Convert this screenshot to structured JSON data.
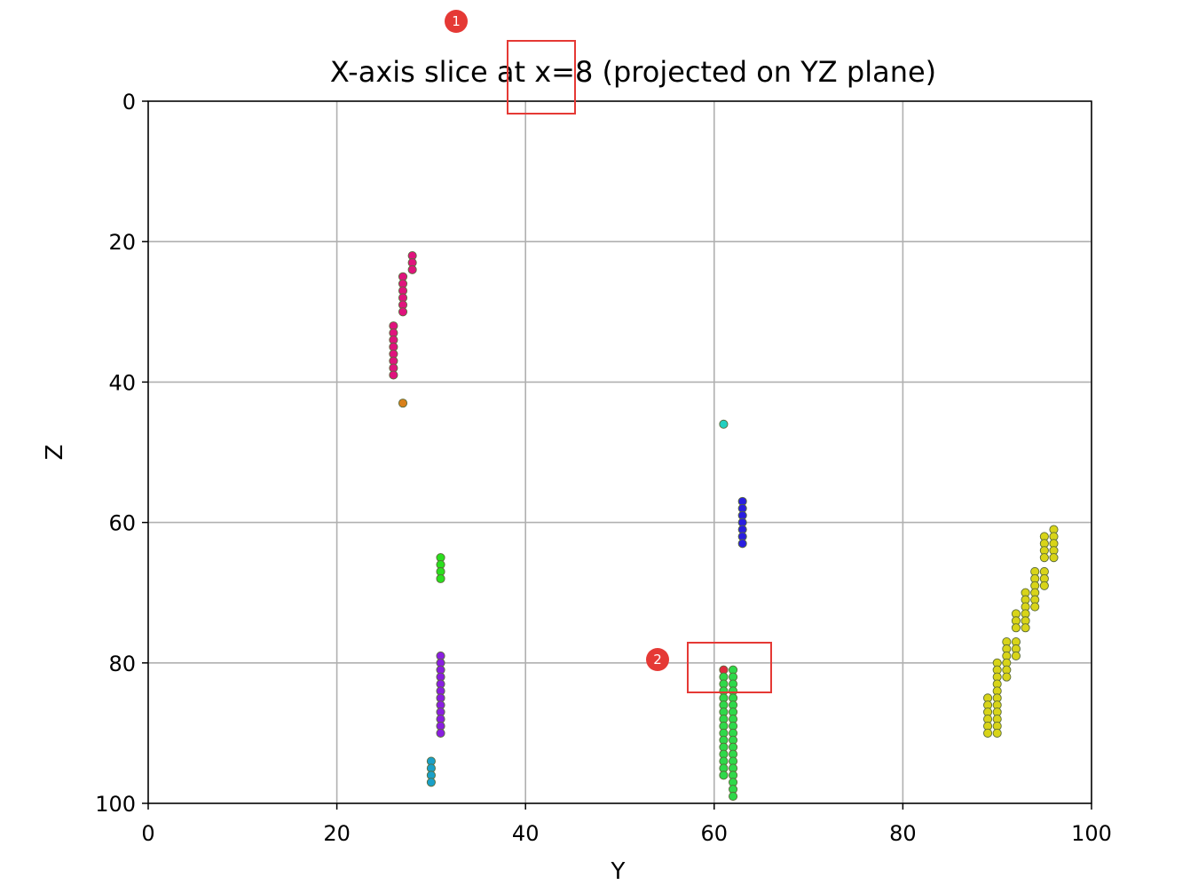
{
  "chart_data": {
    "type": "scatter",
    "title": "X-axis slice at x=8 (projected on YZ plane)",
    "xlabel": "Y",
    "ylabel": "Z",
    "xlim": [
      0,
      100
    ],
    "ylim": [
      100,
      0
    ],
    "y_inverted": true,
    "xticks": [
      "0",
      "20",
      "40",
      "60",
      "80",
      "100"
    ],
    "yticks": [
      "0",
      "20",
      "40",
      "60",
      "80",
      "100"
    ],
    "grid": true,
    "series": [
      {
        "color": "#e0137e",
        "points": [
          [
            28,
            22
          ],
          [
            28,
            23
          ],
          [
            28,
            24
          ],
          [
            27,
            25
          ],
          [
            27,
            26
          ],
          [
            27,
            27
          ],
          [
            27,
            28
          ],
          [
            27,
            29
          ],
          [
            27,
            30
          ],
          [
            26,
            32
          ],
          [
            26,
            33
          ],
          [
            26,
            34
          ],
          [
            26,
            35
          ],
          [
            26,
            36
          ],
          [
            26,
            37
          ],
          [
            26,
            38
          ],
          [
            26,
            39
          ]
        ]
      },
      {
        "color": "#d9801a",
        "points": [
          [
            27,
            43
          ]
        ]
      },
      {
        "color": "#2adf1e",
        "points": [
          [
            31,
            65
          ],
          [
            31,
            66
          ],
          [
            31,
            67
          ],
          [
            31,
            68
          ]
        ]
      },
      {
        "color": "#8a1ee0",
        "points": [
          [
            31,
            79
          ],
          [
            31,
            80
          ],
          [
            31,
            81
          ],
          [
            31,
            82
          ],
          [
            31,
            83
          ],
          [
            31,
            84
          ],
          [
            31,
            85
          ],
          [
            31,
            86
          ],
          [
            31,
            87
          ],
          [
            31,
            88
          ],
          [
            31,
            89
          ],
          [
            31,
            90
          ]
        ]
      },
      {
        "color": "#1aa0c8",
        "points": [
          [
            30,
            94
          ],
          [
            30,
            95
          ],
          [
            30,
            96
          ],
          [
            30,
            97
          ]
        ]
      },
      {
        "color": "#22d0c0",
        "points": [
          [
            61,
            46
          ]
        ]
      },
      {
        "color": "#2a1ee0",
        "points": [
          [
            63,
            57
          ],
          [
            63,
            58
          ],
          [
            63,
            59
          ],
          [
            63,
            60
          ],
          [
            63,
            61
          ],
          [
            63,
            62
          ],
          [
            63,
            63
          ]
        ]
      },
      {
        "color": "#e02a3e",
        "points": [
          [
            61,
            81
          ]
        ]
      },
      {
        "color": "#2fd94a",
        "points": [
          [
            62,
            81
          ],
          [
            61,
            82
          ],
          [
            62,
            82
          ],
          [
            61,
            83
          ],
          [
            62,
            83
          ],
          [
            61,
            84
          ],
          [
            62,
            84
          ],
          [
            61,
            85
          ],
          [
            62,
            85
          ],
          [
            61,
            86
          ],
          [
            62,
            86
          ],
          [
            61,
            87
          ],
          [
            62,
            87
          ],
          [
            61,
            88
          ],
          [
            62,
            88
          ],
          [
            61,
            89
          ],
          [
            62,
            89
          ],
          [
            61,
            90
          ],
          [
            62,
            90
          ],
          [
            61,
            91
          ],
          [
            62,
            91
          ],
          [
            61,
            92
          ],
          [
            62,
            92
          ],
          [
            61,
            93
          ],
          [
            62,
            93
          ],
          [
            61,
            94
          ],
          [
            62,
            94
          ],
          [
            61,
            95
          ],
          [
            62,
            95
          ],
          [
            61,
            96
          ],
          [
            62,
            96
          ],
          [
            62,
            97
          ],
          [
            62,
            98
          ],
          [
            62,
            99
          ]
        ]
      },
      {
        "color": "#d8d418",
        "points": [
          [
            96,
            61
          ],
          [
            95,
            62
          ],
          [
            96,
            62
          ],
          [
            95,
            63
          ],
          [
            96,
            63
          ],
          [
            95,
            64
          ],
          [
            96,
            64
          ],
          [
            95,
            65
          ],
          [
            96,
            65
          ],
          [
            94,
            67
          ],
          [
            95,
            67
          ],
          [
            94,
            68
          ],
          [
            95,
            68
          ],
          [
            94,
            69
          ],
          [
            95,
            69
          ],
          [
            93,
            70
          ],
          [
            94,
            70
          ],
          [
            93,
            71
          ],
          [
            94,
            71
          ],
          [
            93,
            72
          ],
          [
            94,
            72
          ],
          [
            92,
            73
          ],
          [
            93,
            73
          ],
          [
            92,
            74
          ],
          [
            93,
            74
          ],
          [
            92,
            75
          ],
          [
            93,
            75
          ],
          [
            91,
            77
          ],
          [
            92,
            77
          ],
          [
            91,
            78
          ],
          [
            92,
            78
          ],
          [
            91,
            79
          ],
          [
            92,
            79
          ],
          [
            90,
            80
          ],
          [
            91,
            80
          ],
          [
            90,
            81
          ],
          [
            91,
            81
          ],
          [
            90,
            82
          ],
          [
            91,
            82
          ],
          [
            90,
            83
          ],
          [
            90,
            84
          ],
          [
            89,
            85
          ],
          [
            90,
            85
          ],
          [
            89,
            86
          ],
          [
            90,
            86
          ],
          [
            89,
            87
          ],
          [
            90,
            87
          ],
          [
            89,
            88
          ],
          [
            90,
            88
          ],
          [
            89,
            89
          ],
          [
            90,
            89
          ],
          [
            89,
            90
          ],
          [
            90,
            90
          ]
        ]
      }
    ]
  },
  "annotations": [
    {
      "label": "1",
      "color": "#e53935"
    },
    {
      "label": "2",
      "color": "#e53935"
    }
  ]
}
